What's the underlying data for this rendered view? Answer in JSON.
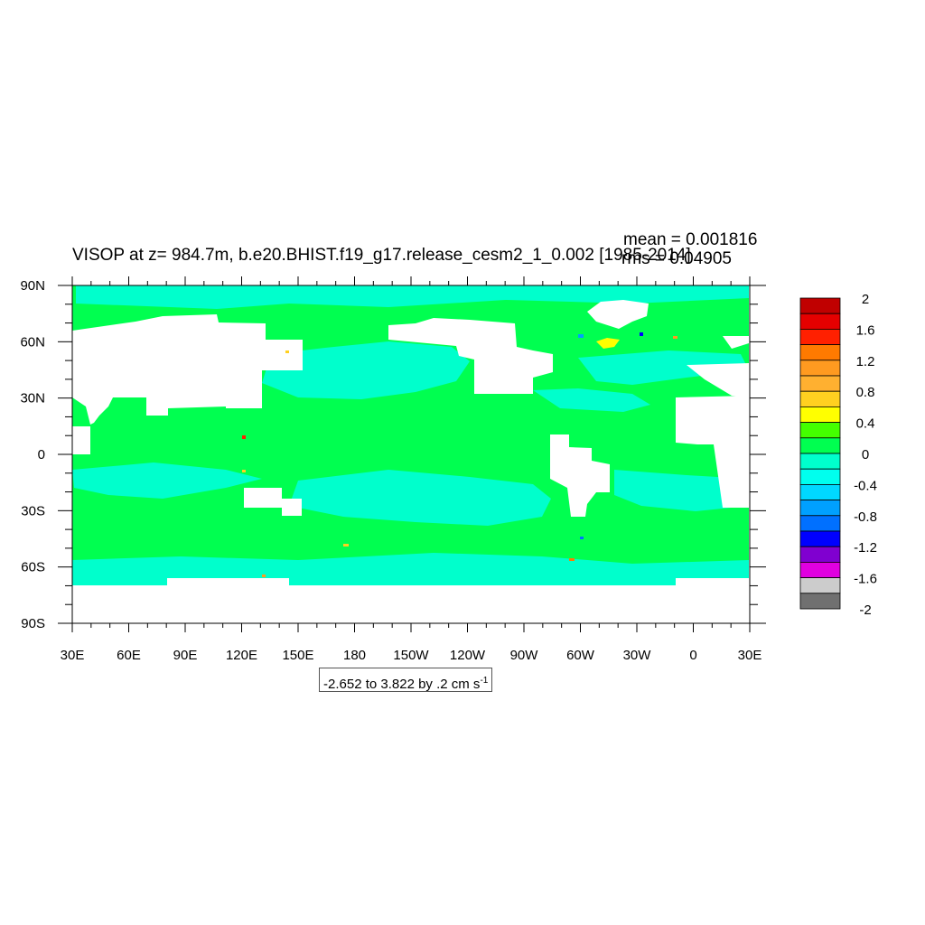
{
  "title": "VISOP at z= 984.7m, b.e20.BHIST.f19_g17.release_cesm2_1_0.002 [1985-2014]",
  "stats": {
    "mean": "mean = 0.001816",
    "rms": "rms = 0.04905"
  },
  "range_label": {
    "text": "-2.652 to 3.822 by .2 cm s",
    "exponent": "-1"
  },
  "map": {
    "lon_ticks": [
      "30E",
      "60E",
      "90E",
      "120E",
      "150E",
      "180",
      "150W",
      "120W",
      "90W",
      "60W",
      "30W",
      "0",
      "30E"
    ],
    "lat_ticks": [
      "90N",
      "60N",
      "30N",
      "0",
      "30S",
      "60S",
      "90S"
    ],
    "ocean_base_color": "#00ff50",
    "land_color": "#ffffff",
    "negative_band_color": "#00ffcc"
  },
  "colorbar": {
    "labels": [
      "2",
      "1.6",
      "1.2",
      "0.8",
      "0.4",
      "0",
      "-0.4",
      "-0.8",
      "-1.2",
      "-1.6",
      "-2"
    ],
    "colors": [
      "#c00000",
      "#e50000",
      "#ff2000",
      "#ff7a00",
      "#ff9a20",
      "#ffb030",
      "#ffd020",
      "#ffff00",
      "#44ff00",
      "#00ff50",
      "#00ffcc",
      "#00ffee",
      "#00d8ff",
      "#00a0ff",
      "#0070ff",
      "#0000ff",
      "#8000d0",
      "#e000e0",
      "#cccccc",
      "#707070"
    ]
  }
}
